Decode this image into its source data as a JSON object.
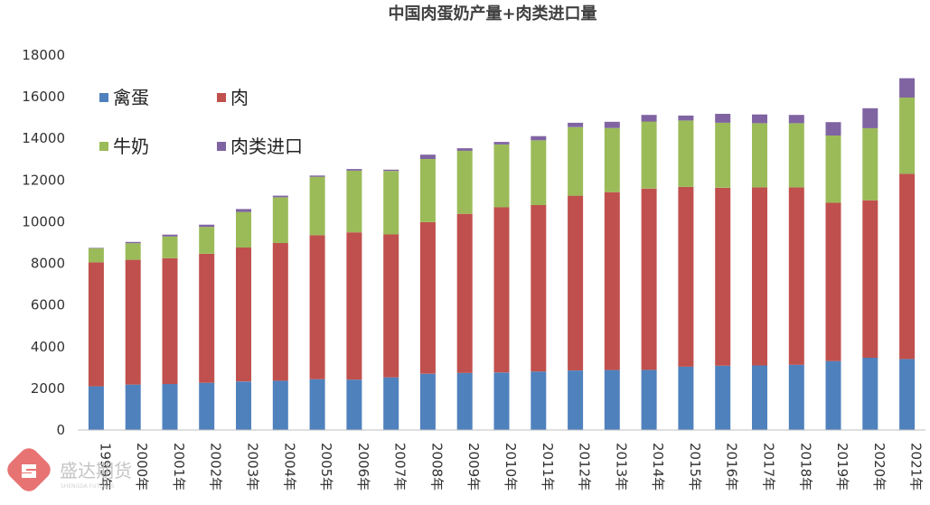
{
  "chart_data": {
    "type": "bar",
    "stacked": true,
    "title": "中国肉蛋奶产量+肉类进口量",
    "xlabel": "",
    "ylabel": "",
    "ylim": [
      0,
      18000
    ],
    "yticks": [
      0,
      2000,
      4000,
      6000,
      8000,
      10000,
      12000,
      14000,
      16000,
      18000
    ],
    "grid": false,
    "legend_position": "top-left",
    "categories": [
      "1999年",
      "2000年",
      "2001年",
      "2002年",
      "2003年",
      "2004年",
      "2005年",
      "2006年",
      "2007年",
      "2008年",
      "2009年",
      "2010年",
      "2011年",
      "2012年",
      "2013年",
      "2014年",
      "2015年",
      "2016年",
      "2017年",
      "2018年",
      "2019年",
      "2020年",
      "2021年"
    ],
    "series": [
      {
        "name": "禽蛋",
        "color": "#4f81bd",
        "values": [
          2100,
          2180,
          2210,
          2270,
          2330,
          2370,
          2440,
          2420,
          2530,
          2700,
          2740,
          2760,
          2810,
          2860,
          2880,
          2890,
          3040,
          3090,
          3100,
          3130,
          3310,
          3470,
          3410
        ]
      },
      {
        "name": "肉",
        "color": "#c0504d",
        "values": [
          5950,
          5990,
          6040,
          6190,
          6430,
          6610,
          6910,
          7070,
          6860,
          7280,
          7640,
          7930,
          7990,
          8390,
          8540,
          8700,
          8630,
          8540,
          8550,
          8520,
          7600,
          7560,
          8890
        ]
      },
      {
        "name": "牛奶",
        "color": "#9bbb59",
        "values": [
          680,
          800,
          1040,
          1290,
          1710,
          2190,
          2810,
          2960,
          3050,
          3030,
          3030,
          3020,
          3110,
          3290,
          3080,
          3220,
          3190,
          3120,
          3080,
          3080,
          3230,
          3460,
          3660
        ]
      },
      {
        "name": "肉类进口",
        "color": "#8064a2",
        "values": [
          20,
          60,
          90,
          110,
          140,
          80,
          60,
          80,
          60,
          210,
          120,
          120,
          200,
          210,
          300,
          320,
          240,
          430,
          420,
          400,
          640,
          960,
          930
        ]
      }
    ]
  },
  "watermark": {
    "text": "盛达期货",
    "sub": "SHENGDA FUTURES"
  }
}
